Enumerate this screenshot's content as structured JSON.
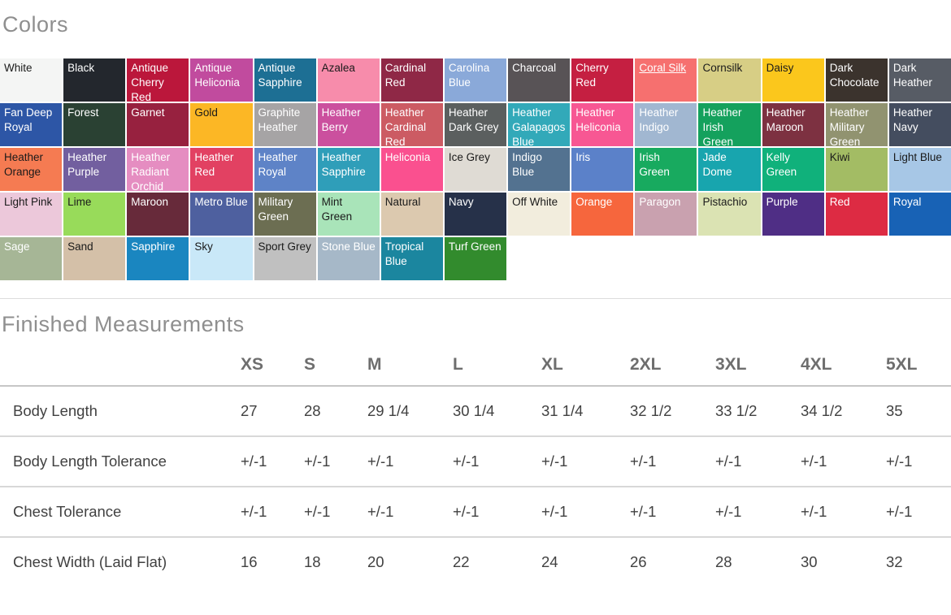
{
  "colors_section": {
    "title": "Colors",
    "swatches": [
      {
        "label": "White",
        "bg": "#f4f5f4",
        "fg": "#1a1a1a"
      },
      {
        "label": "Black",
        "bg": "#23272d",
        "fg": "#ffffff"
      },
      {
        "label": "Antique Cherry Red",
        "bg": "#bb173b",
        "fg": "#ffffff"
      },
      {
        "label": "Antique Heliconia",
        "bg": "#c14b9e",
        "fg": "#ffffff"
      },
      {
        "label": "Antique Sapphire",
        "bg": "#1d6f94",
        "fg": "#ffffff"
      },
      {
        "label": "Azalea",
        "bg": "#f78cab",
        "fg": "#1a1a1a"
      },
      {
        "label": "Cardinal Red",
        "bg": "#8f2846",
        "fg": "#ffffff"
      },
      {
        "label": "Carolina Blue",
        "bg": "#8aa9d9",
        "fg": "#ffffff"
      },
      {
        "label": "Charcoal",
        "bg": "#585356",
        "fg": "#ffffff"
      },
      {
        "label": "Cherry Red",
        "bg": "#c51f41",
        "fg": "#ffffff"
      },
      {
        "label": "Coral Silk",
        "bg": "#f6706f",
        "fg": "#ffffff",
        "underline": true
      },
      {
        "label": "Cornsilk",
        "bg": "#d7ce85",
        "fg": "#1a1a1a"
      },
      {
        "label": "Daisy",
        "bg": "#fbc71c",
        "fg": "#1a1a1a"
      },
      {
        "label": "Dark Chocolate",
        "bg": "#3b332d",
        "fg": "#ffffff"
      },
      {
        "label": "Dark Heather",
        "bg": "#575c65",
        "fg": "#ffffff"
      },
      {
        "label": "Fan Deep Royal",
        "bg": "#2d56a6",
        "fg": "#ffffff"
      },
      {
        "label": "Forest",
        "bg": "#2a4133",
        "fg": "#ffffff"
      },
      {
        "label": "Garnet",
        "bg": "#97213f",
        "fg": "#ffffff"
      },
      {
        "label": "Gold",
        "bg": "#fcb725",
        "fg": "#1a1a1a"
      },
      {
        "label": "Graphite Heather",
        "bg": "#a6a4a5",
        "fg": "#ffffff"
      },
      {
        "label": "Heather Berry",
        "bg": "#cb509e",
        "fg": "#ffffff"
      },
      {
        "label": "Heather Cardinal Red",
        "bg": "#cc5b63",
        "fg": "#ffffff"
      },
      {
        "label": "Heather Dark Grey",
        "bg": "#5b5f5f",
        "fg": "#ffffff"
      },
      {
        "label": "Heather Galapagos Blue",
        "bg": "#32a9b9",
        "fg": "#ffffff"
      },
      {
        "label": "Heather Heliconia",
        "bg": "#f75793",
        "fg": "#ffffff"
      },
      {
        "label": "Heather Indigo",
        "bg": "#a1b7d1",
        "fg": "#ffffff"
      },
      {
        "label": "Heather Irish Green",
        "bg": "#14a15d",
        "fg": "#ffffff"
      },
      {
        "label": "Heather Maroon",
        "bg": "#7d3141",
        "fg": "#ffffff"
      },
      {
        "label": "Heather Military Green",
        "bg": "#919370",
        "fg": "#ffffff"
      },
      {
        "label": "Heather Navy",
        "bg": "#444d5f",
        "fg": "#ffffff"
      },
      {
        "label": "Heather Orange",
        "bg": "#f57b52",
        "fg": "#1a1a1a"
      },
      {
        "label": "Heather Purple",
        "bg": "#725f9f",
        "fg": "#ffffff"
      },
      {
        "label": "Heather Radiant Orchid",
        "bg": "#e58dc1",
        "fg": "#ffffff"
      },
      {
        "label": "Heather Red",
        "bg": "#e24162",
        "fg": "#ffffff"
      },
      {
        "label": "Heather Royal",
        "bg": "#5e83c7",
        "fg": "#ffffff"
      },
      {
        "label": "Heather Sapphire",
        "bg": "#2f9eb9",
        "fg": "#ffffff"
      },
      {
        "label": "Heliconia",
        "bg": "#fa508f",
        "fg": "#ffffff"
      },
      {
        "label": "Ice Grey",
        "bg": "#dfdbd4",
        "fg": "#1a1a1a"
      },
      {
        "label": "Indigo Blue",
        "bg": "#537290",
        "fg": "#ffffff"
      },
      {
        "label": "Iris",
        "bg": "#5b81c9",
        "fg": "#ffffff"
      },
      {
        "label": "Irish Green",
        "bg": "#18aa5f",
        "fg": "#ffffff"
      },
      {
        "label": "Jade Dome",
        "bg": "#18a5ae",
        "fg": "#ffffff"
      },
      {
        "label": "Kelly Green",
        "bg": "#10b17b",
        "fg": "#ffffff"
      },
      {
        "label": "Kiwi",
        "bg": "#a3bc64",
        "fg": "#1a1a1a"
      },
      {
        "label": "Light Blue",
        "bg": "#a7c7e6",
        "fg": "#1a1a1a"
      },
      {
        "label": "Light Pink",
        "bg": "#ecc8da",
        "fg": "#1a1a1a"
      },
      {
        "label": "Lime",
        "bg": "#98db5a",
        "fg": "#1a1a1a"
      },
      {
        "label": "Maroon",
        "bg": "#672a3a",
        "fg": "#ffffff"
      },
      {
        "label": "Metro Blue",
        "bg": "#4e609f",
        "fg": "#ffffff"
      },
      {
        "label": "Military Green",
        "bg": "#6c6e52",
        "fg": "#ffffff"
      },
      {
        "label": "Mint Green",
        "bg": "#a9e4b9",
        "fg": "#1a1a1a"
      },
      {
        "label": "Natural",
        "bg": "#dcc9af",
        "fg": "#1a1a1a"
      },
      {
        "label": "Navy",
        "bg": "#263149",
        "fg": "#ffffff"
      },
      {
        "label": "Off White",
        "bg": "#f2eddd",
        "fg": "#1a1a1a"
      },
      {
        "label": "Orange",
        "bg": "#f6663d",
        "fg": "#ffffff"
      },
      {
        "label": "Paragon",
        "bg": "#c9a1af",
        "fg": "#ffffff"
      },
      {
        "label": "Pistachio",
        "bg": "#dbe3b3",
        "fg": "#1a1a1a"
      },
      {
        "label": "Purple",
        "bg": "#4f2e85",
        "fg": "#ffffff"
      },
      {
        "label": "Red",
        "bg": "#dd2b43",
        "fg": "#ffffff"
      },
      {
        "label": "Royal",
        "bg": "#1862b5",
        "fg": "#ffffff"
      },
      {
        "label": "Sage",
        "bg": "#a6b696",
        "fg": "#ffffff"
      },
      {
        "label": "Sand",
        "bg": "#d4c0a8",
        "fg": "#1a1a1a"
      },
      {
        "label": "Sapphire",
        "bg": "#1a86c0",
        "fg": "#ffffff"
      },
      {
        "label": "Sky",
        "bg": "#c9e8f8",
        "fg": "#1a1a1a"
      },
      {
        "label": "Sport Grey",
        "bg": "#c0c0c0",
        "fg": "#1a1a1a"
      },
      {
        "label": "Stone Blue",
        "bg": "#a6b8c8",
        "fg": "#ffffff"
      },
      {
        "label": "Tropical Blue",
        "bg": "#1b869f",
        "fg": "#ffffff"
      },
      {
        "label": "Turf Green",
        "bg": "#328b2d",
        "fg": "#ffffff"
      }
    ]
  },
  "measurements_section": {
    "title": "Finished Measurements",
    "table": {
      "type": "table",
      "columns": [
        "",
        "XS",
        "S",
        "M",
        "L",
        "XL",
        "2XL",
        "3XL",
        "4XL",
        "5XL"
      ],
      "rows": [
        [
          "Body Length",
          "27",
          "28",
          "29 1/4",
          "30 1/4",
          "31 1/4",
          "32 1/2",
          "33 1/2",
          "34 1/2",
          "35"
        ],
        [
          "Body Length Tolerance",
          "+/-1",
          "+/-1",
          "+/-1",
          "+/-1",
          "+/-1",
          "+/-1",
          "+/-1",
          "+/-1",
          "+/-1"
        ],
        [
          "Chest Tolerance",
          "+/-1",
          "+/-1",
          "+/-1",
          "+/-1",
          "+/-1",
          "+/-1",
          "+/-1",
          "+/-1",
          "+/-1"
        ],
        [
          "Chest Width (Laid Flat)",
          "16",
          "18",
          "20",
          "22",
          "24",
          "26",
          "28",
          "30",
          "32"
        ]
      ]
    }
  }
}
